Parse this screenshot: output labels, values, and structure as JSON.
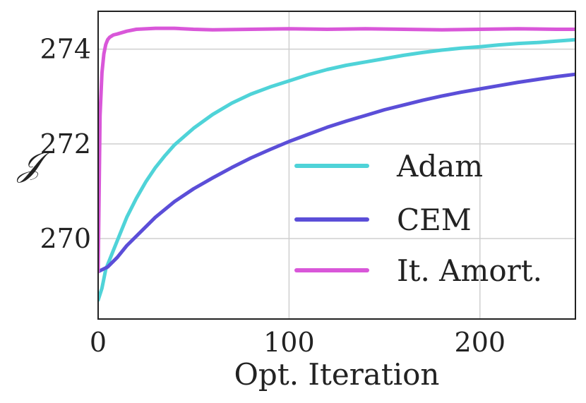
{
  "chart_data": {
    "type": "line",
    "title": "",
    "xlabel": "Opt. Iteration",
    "ylabel": "𝒥",
    "xlim": [
      0,
      250
    ],
    "ylim": [
      268.3,
      274.8
    ],
    "xticks": [
      0,
      100,
      200
    ],
    "xtick_labels": [
      "0",
      "100",
      "200"
    ],
    "yticks": [
      270,
      272,
      274
    ],
    "ytick_labels": [
      "270",
      "272",
      "274"
    ],
    "grid": true,
    "legend_position": "lower-right",
    "series": [
      {
        "name": "Adam",
        "color": "#4fd3d8",
        "x": [
          0,
          2,
          4,
          6,
          8,
          10,
          12,
          15,
          20,
          25,
          30,
          35,
          40,
          50,
          60,
          70,
          80,
          90,
          100,
          110,
          120,
          130,
          140,
          150,
          160,
          170,
          180,
          190,
          200,
          210,
          220,
          230,
          240,
          250
        ],
        "y": [
          268.7,
          268.95,
          269.35,
          269.55,
          269.75,
          269.95,
          270.15,
          270.45,
          270.85,
          271.2,
          271.5,
          271.75,
          271.98,
          272.33,
          272.62,
          272.86,
          273.05,
          273.2,
          273.33,
          273.46,
          273.57,
          273.66,
          273.73,
          273.8,
          273.87,
          273.93,
          273.98,
          274.02,
          274.05,
          274.09,
          274.12,
          274.14,
          274.17,
          274.2
        ]
      },
      {
        "name": "CEM",
        "color": "#5b4ed8",
        "x": [
          0,
          5,
          10,
          15,
          20,
          30,
          40,
          50,
          60,
          70,
          80,
          90,
          100,
          110,
          120,
          130,
          140,
          150,
          160,
          170,
          180,
          190,
          200,
          210,
          220,
          230,
          240,
          250
        ],
        "y": [
          269.3,
          269.4,
          269.6,
          269.85,
          270.05,
          270.45,
          270.78,
          271.05,
          271.28,
          271.5,
          271.7,
          271.88,
          272.05,
          272.2,
          272.35,
          272.48,
          272.6,
          272.72,
          272.82,
          272.92,
          273.01,
          273.09,
          273.16,
          273.23,
          273.3,
          273.36,
          273.42,
          273.47
        ]
      },
      {
        "name": "It. Amort.",
        "color": "#d957d9",
        "x": [
          0,
          0.5,
          1,
          2,
          3,
          4,
          5,
          6,
          8,
          10,
          15,
          20,
          30,
          40,
          50,
          60,
          80,
          100,
          120,
          140,
          160,
          180,
          200,
          220,
          240,
          250
        ],
        "y": [
          269.3,
          271.0,
          272.6,
          273.5,
          273.9,
          274.1,
          274.2,
          274.25,
          274.3,
          274.32,
          274.38,
          274.42,
          274.44,
          274.44,
          274.42,
          274.41,
          274.42,
          274.43,
          274.42,
          274.43,
          274.42,
          274.41,
          274.42,
          274.43,
          274.42,
          274.42
        ]
      }
    ]
  }
}
